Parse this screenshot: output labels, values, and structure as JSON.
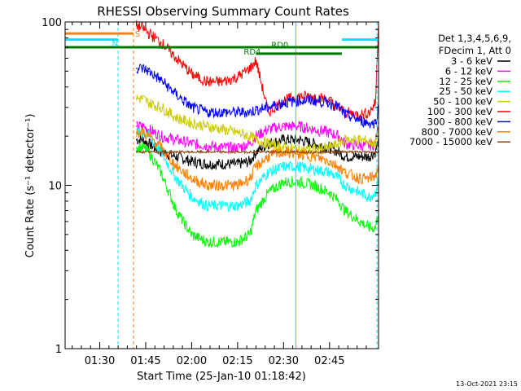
{
  "chart_data": {
    "type": "line",
    "title": "RHESSI Observing Summary Count Rates",
    "xlabel": "Start Time (25-Jan-10 01:18:42)",
    "ylabel": "Count Rate (s⁻¹ detector⁻¹)",
    "yscale": "log",
    "ylim": [
      1,
      100
    ],
    "xlim_min": [
      78.7,
      181
    ],
    "y_ticks": [
      {
        "value": 1,
        "label": "1"
      },
      {
        "value": 10,
        "label": "10"
      },
      {
        "value": 100,
        "label": "100"
      }
    ],
    "x_ticks": [
      {
        "value": 90,
        "label": "01:30"
      },
      {
        "value": 105,
        "label": "01:45"
      },
      {
        "value": 120,
        "label": "02:00"
      },
      {
        "value": 135,
        "label": "02:15"
      },
      {
        "value": 150,
        "label": "02:30"
      },
      {
        "value": 165,
        "label": "02:45"
      }
    ],
    "legend_header": [
      "Det 1,3,4,5,6,9,",
      "FDecim 1, Att 0"
    ],
    "legend_placement": "right",
    "timestamp": "13-Oct-2021 23:15",
    "flag_bars": [
      {
        "label": "S",
        "color": "#f08020",
        "y": 85,
        "x_start": 78.7,
        "x_end": 101
      },
      {
        "label": "N",
        "color": "#00e5ff",
        "y": 78,
        "x_start": 78.7,
        "x_end": 96
      },
      {
        "label": "N",
        "color": "#00e5ff",
        "y": 78,
        "x_start": 169,
        "x_end": 181
      },
      {
        "label": "RD0",
        "color": "#007a00",
        "y": 70,
        "x_start": 78.7,
        "x_end": 181
      },
      {
        "label": "RD4",
        "color": "#007a00",
        "y": 64,
        "x_start": 141,
        "x_end": 169
      }
    ],
    "flag_labels": [
      {
        "text": "S",
        "color": "#f08020",
        "x": 101.5,
        "y": 85
      },
      {
        "text": "N",
        "color": "#00e5ff",
        "x": 94,
        "y": 74
      },
      {
        "text": "RD0",
        "color": "#007a00",
        "x": 146,
        "y": 73
      },
      {
        "text": "RD4",
        "color": "#007a00",
        "x": 137,
        "y": 66
      }
    ],
    "vertical_lines": [
      {
        "x": 96,
        "color": "#00e5ff",
        "style": "dashed"
      },
      {
        "x": 101,
        "color": "#f08020",
        "style": "dashed"
      },
      {
        "x": 154,
        "color": "#00e5ff",
        "style": "solid"
      },
      {
        "x": 180.5,
        "color": "#00e5ff",
        "style": "dashed"
      }
    ],
    "x": [
      102,
      104,
      106,
      110,
      115,
      120,
      125,
      130,
      135,
      139,
      141,
      145,
      150,
      155,
      160,
      165,
      168,
      170,
      175,
      178,
      180,
      181
    ],
    "series": [
      {
        "name": "3 - 6 keV",
        "color": "#000000",
        "values": [
          19,
          19,
          18,
          16,
          15,
          14,
          13.5,
          13.5,
          13.5,
          14,
          16,
          18,
          19,
          19,
          18,
          17,
          16,
          15,
          15,
          15,
          16,
          19
        ]
      },
      {
        "name": "6 - 12 keV",
        "color": "#ff00ff",
        "values": [
          23,
          23,
          22,
          20,
          19,
          18,
          17.5,
          17,
          17,
          18,
          20,
          22,
          23,
          23,
          22,
          21,
          20,
          18,
          17.5,
          17.5,
          18,
          24
        ]
      },
      {
        "name": "12 - 25 keV",
        "color": "#00ff00",
        "values": [
          17,
          17,
          16,
          12,
          7,
          5,
          4.5,
          4.5,
          4.5,
          5,
          7,
          9,
          10.5,
          10.5,
          10,
          9,
          8,
          7,
          6,
          5.5,
          5.5,
          7
        ]
      },
      {
        "name": "25 - 50 keV",
        "color": "#00ffff",
        "values": [
          21,
          21,
          20,
          16,
          11,
          8.5,
          7.5,
          7.5,
          7.5,
          8,
          10,
          12,
          13,
          13,
          12.5,
          12,
          11,
          10,
          9,
          8.5,
          9,
          11
        ]
      },
      {
        "name": "50 - 100 keV",
        "color": "#cccc00",
        "values": [
          34,
          34,
          32,
          30,
          26,
          24,
          23,
          22,
          21,
          20,
          19,
          18,
          17,
          16.5,
          16.5,
          17,
          18,
          19,
          19,
          18.5,
          18,
          22
        ]
      },
      {
        "name": "100 - 300 keV",
        "color": "#ff0000",
        "values": [
          95,
          92,
          85,
          75,
          60,
          48,
          43,
          43,
          46,
          52,
          58,
          28,
          33,
          35,
          35,
          33,
          30,
          28,
          27,
          28,
          32,
          100
        ]
      },
      {
        "name": "300 - 800 keV",
        "color": "#0000ff",
        "values": [
          52,
          52,
          50,
          44,
          36,
          30,
          28,
          28,
          28,
          28,
          29,
          30,
          32,
          33,
          33,
          32,
          30,
          27,
          25,
          24,
          24,
          30
        ]
      },
      {
        "name": "800 - 7000 keV",
        "color": "#ff8000",
        "values": [
          21,
          21,
          20,
          17,
          13,
          11,
          10,
          10,
          10,
          11,
          13,
          15,
          16,
          15.5,
          15,
          14,
          13,
          12,
          11,
          11,
          11.5,
          13
        ]
      },
      {
        "name": "7000 - 15000 keV",
        "color": "#8b4513",
        "values": [
          16,
          16,
          16,
          16,
          16,
          16,
          16,
          16,
          16,
          16,
          16,
          16,
          16,
          16,
          16,
          16,
          16,
          16,
          16,
          16,
          16,
          16
        ]
      }
    ]
  }
}
